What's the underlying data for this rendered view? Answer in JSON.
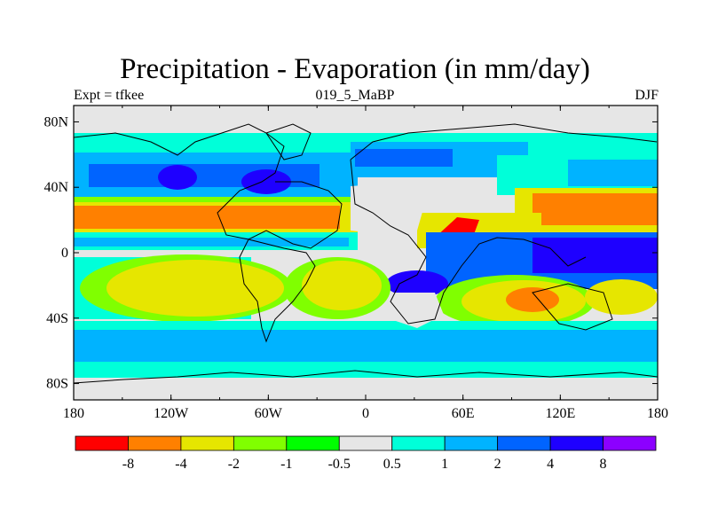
{
  "title": "Precipitation - Evaporation (in mm/day)",
  "subtitle_left": "Expt = tfkee",
  "subtitle_center": "019_5_MaBP",
  "subtitle_right": "DJF",
  "x_ticks": [
    "180",
    "120W",
    "60W",
    "0",
    "60E",
    "120E",
    "180"
  ],
  "y_ticks": [
    "80N",
    "40N",
    "0",
    "40S",
    "80S"
  ],
  "legend": {
    "labels": [
      "-8",
      "-4",
      "-2",
      "-1",
      "-0.5",
      "0.5",
      "1",
      "2",
      "4",
      "8"
    ],
    "colors": [
      "#ff0000",
      "#ff8000",
      "#e6e600",
      "#80ff00",
      "#00ff00",
      "#e6e6e6",
      "#00ffd9",
      "#00b3ff",
      "#0064ff",
      "#1e00ff",
      "#8c00ff"
    ]
  }
}
